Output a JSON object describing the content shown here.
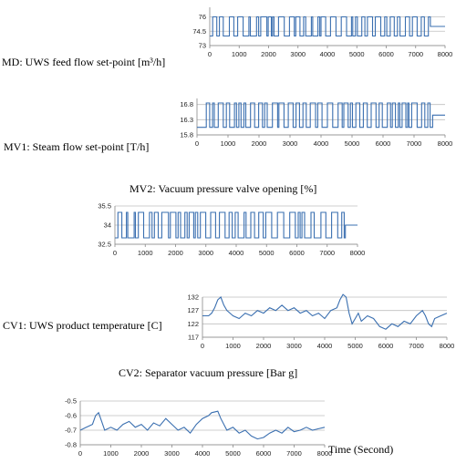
{
  "chart_data": [
    {
      "id": "md",
      "type": "line",
      "label": "MD: UWS feed flow set-point [m³/h]",
      "x_ticks": [
        "0",
        "1000",
        "2000",
        "3000",
        "4000",
        "5000",
        "6000",
        "7000",
        "8000"
      ],
      "y_ticks": [
        "76",
        "74.5",
        "73"
      ],
      "xlim": [
        0,
        8000
      ],
      "ylim": [
        73,
        77
      ],
      "levels": [
        74,
        76
      ],
      "tail_value": 75,
      "x_start": 100,
      "x_end": 7500,
      "toggles": 60,
      "grid": true,
      "series": [
        {
          "color": "#3a6fb0"
        }
      ]
    },
    {
      "id": "mv1",
      "type": "line",
      "label": "MV1: Steam flow set-point [T/h]",
      "x_ticks": [
        "0",
        "1000",
        "2000",
        "3000",
        "4000",
        "5000",
        "6000",
        "7000",
        "8000"
      ],
      "y_ticks": [
        "16.8",
        "16.3",
        "15.8"
      ],
      "xlim": [
        0,
        8000
      ],
      "ylim": [
        15.8,
        17.0
      ],
      "levels": [
        16.05,
        16.85
      ],
      "tail_value": 16.45,
      "x_start": 300,
      "x_end": 7600,
      "toggles": 70,
      "grid": true,
      "series": [
        {
          "color": "#3a6fb0"
        }
      ]
    },
    {
      "id": "mv2",
      "type": "line",
      "title": "MV2: Vacuum pressure valve opening [%]",
      "x_ticks": [
        "0",
        "1000",
        "2000",
        "3000",
        "4000",
        "5000",
        "6000",
        "7000",
        "8000"
      ],
      "y_ticks": [
        "35.5",
        "34",
        "32.5"
      ],
      "xlim": [
        0,
        8000
      ],
      "ylim": [
        32.5,
        35.5
      ],
      "levels": [
        33,
        35
      ],
      "tail_value": 34,
      "x_start": 100,
      "x_end": 7600,
      "toggles": 55,
      "grid": true,
      "series": [
        {
          "color": "#3a6fb0"
        }
      ]
    },
    {
      "id": "cv1",
      "type": "line",
      "label": "CV1: UWS product temperature [C]",
      "x_ticks": [
        "0",
        "1000",
        "2000",
        "3000",
        "4000",
        "5000",
        "6000",
        "7000",
        "8000"
      ],
      "y_ticks": [
        "132",
        "127",
        "122",
        "117"
      ],
      "xlim": [
        0,
        8000
      ],
      "ylim": [
        117,
        132
      ],
      "grid": true,
      "series": [
        {
          "color": "#3a6fb0",
          "points": [
            [
              0,
              125
            ],
            [
              200,
              125
            ],
            [
              300,
              126
            ],
            [
              400,
              128
            ],
            [
              500,
              131
            ],
            [
              600,
              132
            ],
            [
              700,
              129
            ],
            [
              800,
              127
            ],
            [
              1000,
              125
            ],
            [
              1200,
              124
            ],
            [
              1400,
              126
            ],
            [
              1600,
              125
            ],
            [
              1800,
              127
            ],
            [
              2000,
              126
            ],
            [
              2200,
              128
            ],
            [
              2400,
              127
            ],
            [
              2600,
              129
            ],
            [
              2800,
              127
            ],
            [
              3000,
              128
            ],
            [
              3200,
              126
            ],
            [
              3400,
              127
            ],
            [
              3600,
              125
            ],
            [
              3800,
              126
            ],
            [
              4000,
              124
            ],
            [
              4200,
              127
            ],
            [
              4400,
              128
            ],
            [
              4500,
              131
            ],
            [
              4600,
              133
            ],
            [
              4700,
              132
            ],
            [
              4800,
              126
            ],
            [
              4900,
              122
            ],
            [
              5000,
              124
            ],
            [
              5100,
              126
            ],
            [
              5200,
              123
            ],
            [
              5400,
              125
            ],
            [
              5600,
              124
            ],
            [
              5800,
              121
            ],
            [
              6000,
              120
            ],
            [
              6200,
              122
            ],
            [
              6400,
              121
            ],
            [
              6600,
              123
            ],
            [
              6800,
              122
            ],
            [
              7000,
              125
            ],
            [
              7200,
              127
            ],
            [
              7300,
              125
            ],
            [
              7400,
              122
            ],
            [
              7500,
              121
            ],
            [
              7600,
              124
            ],
            [
              7800,
              125
            ],
            [
              8000,
              126
            ]
          ]
        }
      ]
    },
    {
      "id": "cv2",
      "type": "line",
      "title": "CV2: Separator vacuum pressure [Bar g]",
      "x_ticks": [
        "0",
        "1000",
        "2000",
        "3000",
        "4000",
        "5000",
        "6000",
        "7000",
        "8000"
      ],
      "y_ticks": [
        "-0.5",
        "-0.6",
        "-0.7",
        "-0.8"
      ],
      "xlim": [
        0,
        8000
      ],
      "ylim": [
        -0.8,
        -0.5
      ],
      "xlabel": "Time (Second)",
      "grid": true,
      "series": [
        {
          "color": "#3a6fb0",
          "points": [
            [
              0,
              -0.7
            ],
            [
              200,
              -0.68
            ],
            [
              400,
              -0.66
            ],
            [
              500,
              -0.6
            ],
            [
              600,
              -0.58
            ],
            [
              700,
              -0.64
            ],
            [
              800,
              -0.7
            ],
            [
              1000,
              -0.68
            ],
            [
              1200,
              -0.7
            ],
            [
              1400,
              -0.66
            ],
            [
              1600,
              -0.64
            ],
            [
              1800,
              -0.68
            ],
            [
              2000,
              -0.66
            ],
            [
              2200,
              -0.7
            ],
            [
              2400,
              -0.65
            ],
            [
              2600,
              -0.67
            ],
            [
              2800,
              -0.62
            ],
            [
              3000,
              -0.66
            ],
            [
              3200,
              -0.7
            ],
            [
              3400,
              -0.68
            ],
            [
              3600,
              -0.72
            ],
            [
              3800,
              -0.66
            ],
            [
              4000,
              -0.62
            ],
            [
              4200,
              -0.6
            ],
            [
              4300,
              -0.58
            ],
            [
              4500,
              -0.57
            ],
            [
              4600,
              -0.62
            ],
            [
              4800,
              -0.7
            ],
            [
              5000,
              -0.68
            ],
            [
              5200,
              -0.72
            ],
            [
              5400,
              -0.7
            ],
            [
              5600,
              -0.74
            ],
            [
              5800,
              -0.76
            ],
            [
              6000,
              -0.75
            ],
            [
              6200,
              -0.72
            ],
            [
              6400,
              -0.7
            ],
            [
              6600,
              -0.72
            ],
            [
              6800,
              -0.68
            ],
            [
              7000,
              -0.71
            ],
            [
              7200,
              -0.7
            ],
            [
              7400,
              -0.68
            ],
            [
              7600,
              -0.7
            ],
            [
              7800,
              -0.69
            ],
            [
              8000,
              -0.68
            ]
          ]
        }
      ]
    }
  ]
}
